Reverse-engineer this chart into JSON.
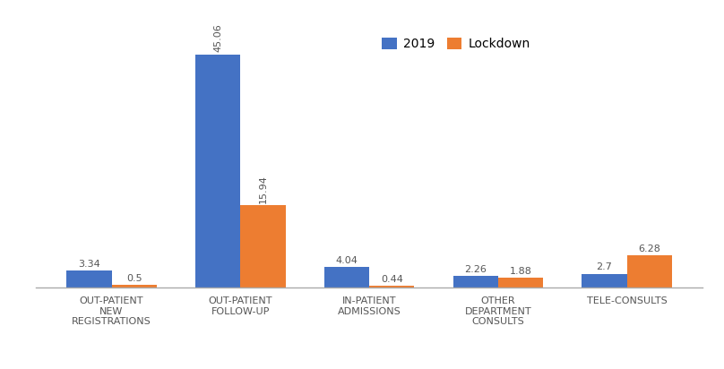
{
  "categories": [
    "OUT-PATIENT\nNEW\nREGISTRATIONS",
    "OUT-PATIENT\nFOLLOW-UP",
    "IN-PATIENT\nADMISSIONS",
    "OTHER\nDEPARTMENT\nCONSULTS",
    "TELE-CONSULTS"
  ],
  "values_2019": [
    3.34,
    45.06,
    4.04,
    2.26,
    2.7
  ],
  "values_lockdown": [
    0.5,
    15.94,
    0.44,
    1.88,
    6.28
  ],
  "color_2019": "#4472C4",
  "color_lockdown": "#ED7D31",
  "bar_width": 0.35,
  "legend_labels": [
    "2019",
    "Lockdown"
  ],
  "tick_label_fontsize": 8,
  "legend_fontsize": 10,
  "value_fontsize": 8,
  "background_color": "#ffffff",
  "border_color": "#aaaaaa",
  "ylim": [
    0,
    52
  ]
}
